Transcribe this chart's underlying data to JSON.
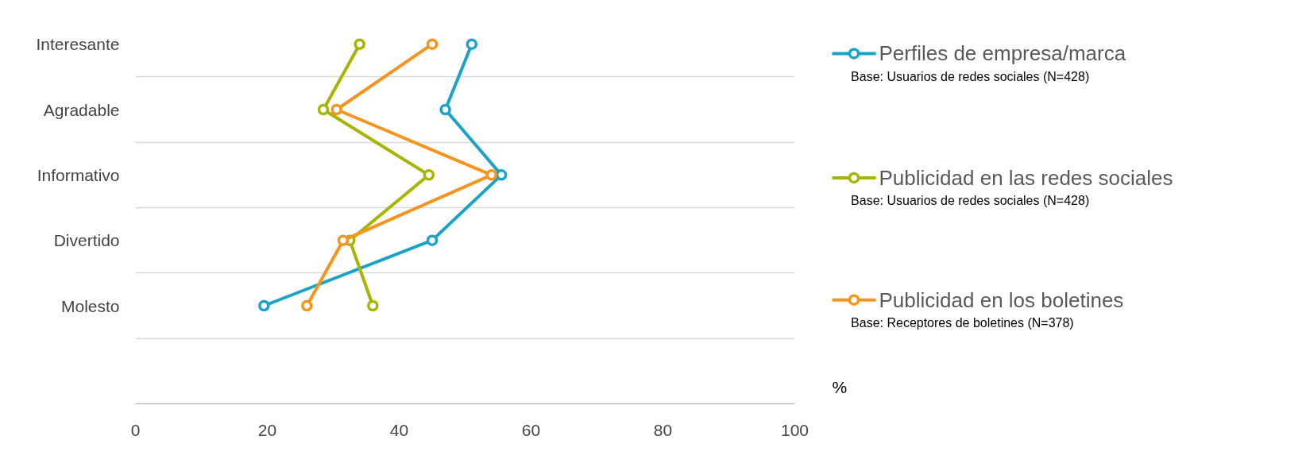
{
  "chart_data": {
    "type": "line",
    "orientation": "horizontal",
    "xlabel": "%",
    "categories": [
      "Interesante",
      "Agradable",
      "Informativo",
      "Divertido",
      "Molesto"
    ],
    "series": [
      {
        "name": "Perfiles de empresa/marca",
        "color": "#1aa3c6",
        "values": [
          51,
          47,
          55.5,
          45,
          19.5
        ]
      },
      {
        "name": "Publicidad en las redes sociales",
        "color": "#a6b600",
        "values": [
          34,
          28.5,
          44.5,
          32.5,
          36
        ]
      },
      {
        "name": "Publicidad en los boletines",
        "color": "#f7941d",
        "values": [
          45,
          30.5,
          54,
          31.5,
          26
        ]
      }
    ],
    "annotations": [
      "Base: Usuarios de redes sociales (N=428)",
      "Base:  Usuarios de redes sociales (N=428)",
      "Base: Receptores de boletines (N=378)"
    ],
    "xlim": [
      0,
      100
    ],
    "xticks": [
      0,
      20,
      40,
      60,
      80,
      100
    ],
    "grid": "y",
    "legend": "right",
    "marker": "circle",
    "line_style": "solid"
  }
}
